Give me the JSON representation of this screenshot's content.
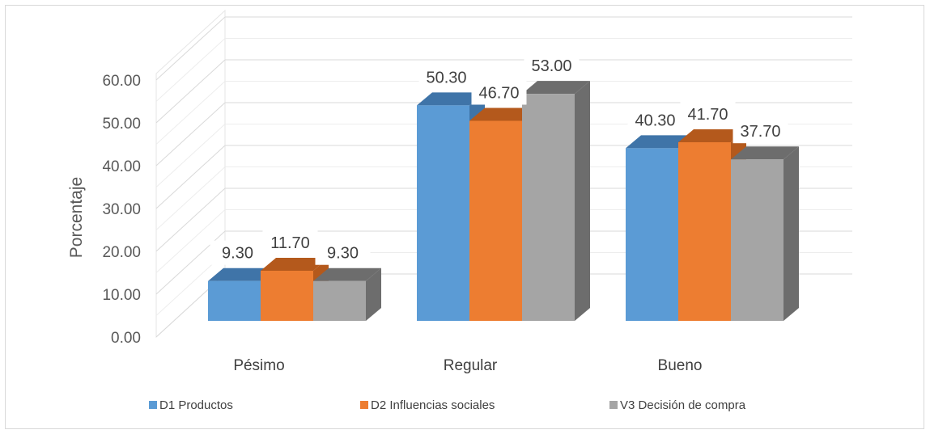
{
  "chart_data": {
    "type": "bar",
    "categories": [
      "Pésimo",
      "Regular",
      "Bueno"
    ],
    "series": [
      {
        "name": "D1 Productos",
        "values": [
          9.3,
          50.3,
          40.3
        ],
        "value_labels": [
          "9.30",
          "50.30",
          "40.30"
        ],
        "color": "#5b9bd5",
        "side_color": "#3f74a8"
      },
      {
        "name": "D2 Influencias sociales",
        "values": [
          11.7,
          46.7,
          41.7
        ],
        "value_labels": [
          "11.70",
          "46.70",
          "41.70"
        ],
        "color": "#ed7d31",
        "side_color": "#b4591c"
      },
      {
        "name": "V3 Decisión de compra",
        "values": [
          9.3,
          53.0,
          37.7
        ],
        "value_labels": [
          "9.30",
          "53.00",
          "37.70"
        ],
        "color": "#a5a5a5",
        "side_color": "#6d6d6d"
      }
    ],
    "ylabel": "Porcentaje",
    "xlabel": "",
    "ylim": [
      0,
      60
    ],
    "yticks": [
      "0.00",
      "10.00",
      "20.00",
      "30.00",
      "40.00",
      "50.00",
      "60.00"
    ],
    "grid": true,
    "legend_position": "bottom",
    "style": "3d-clustered-column"
  }
}
